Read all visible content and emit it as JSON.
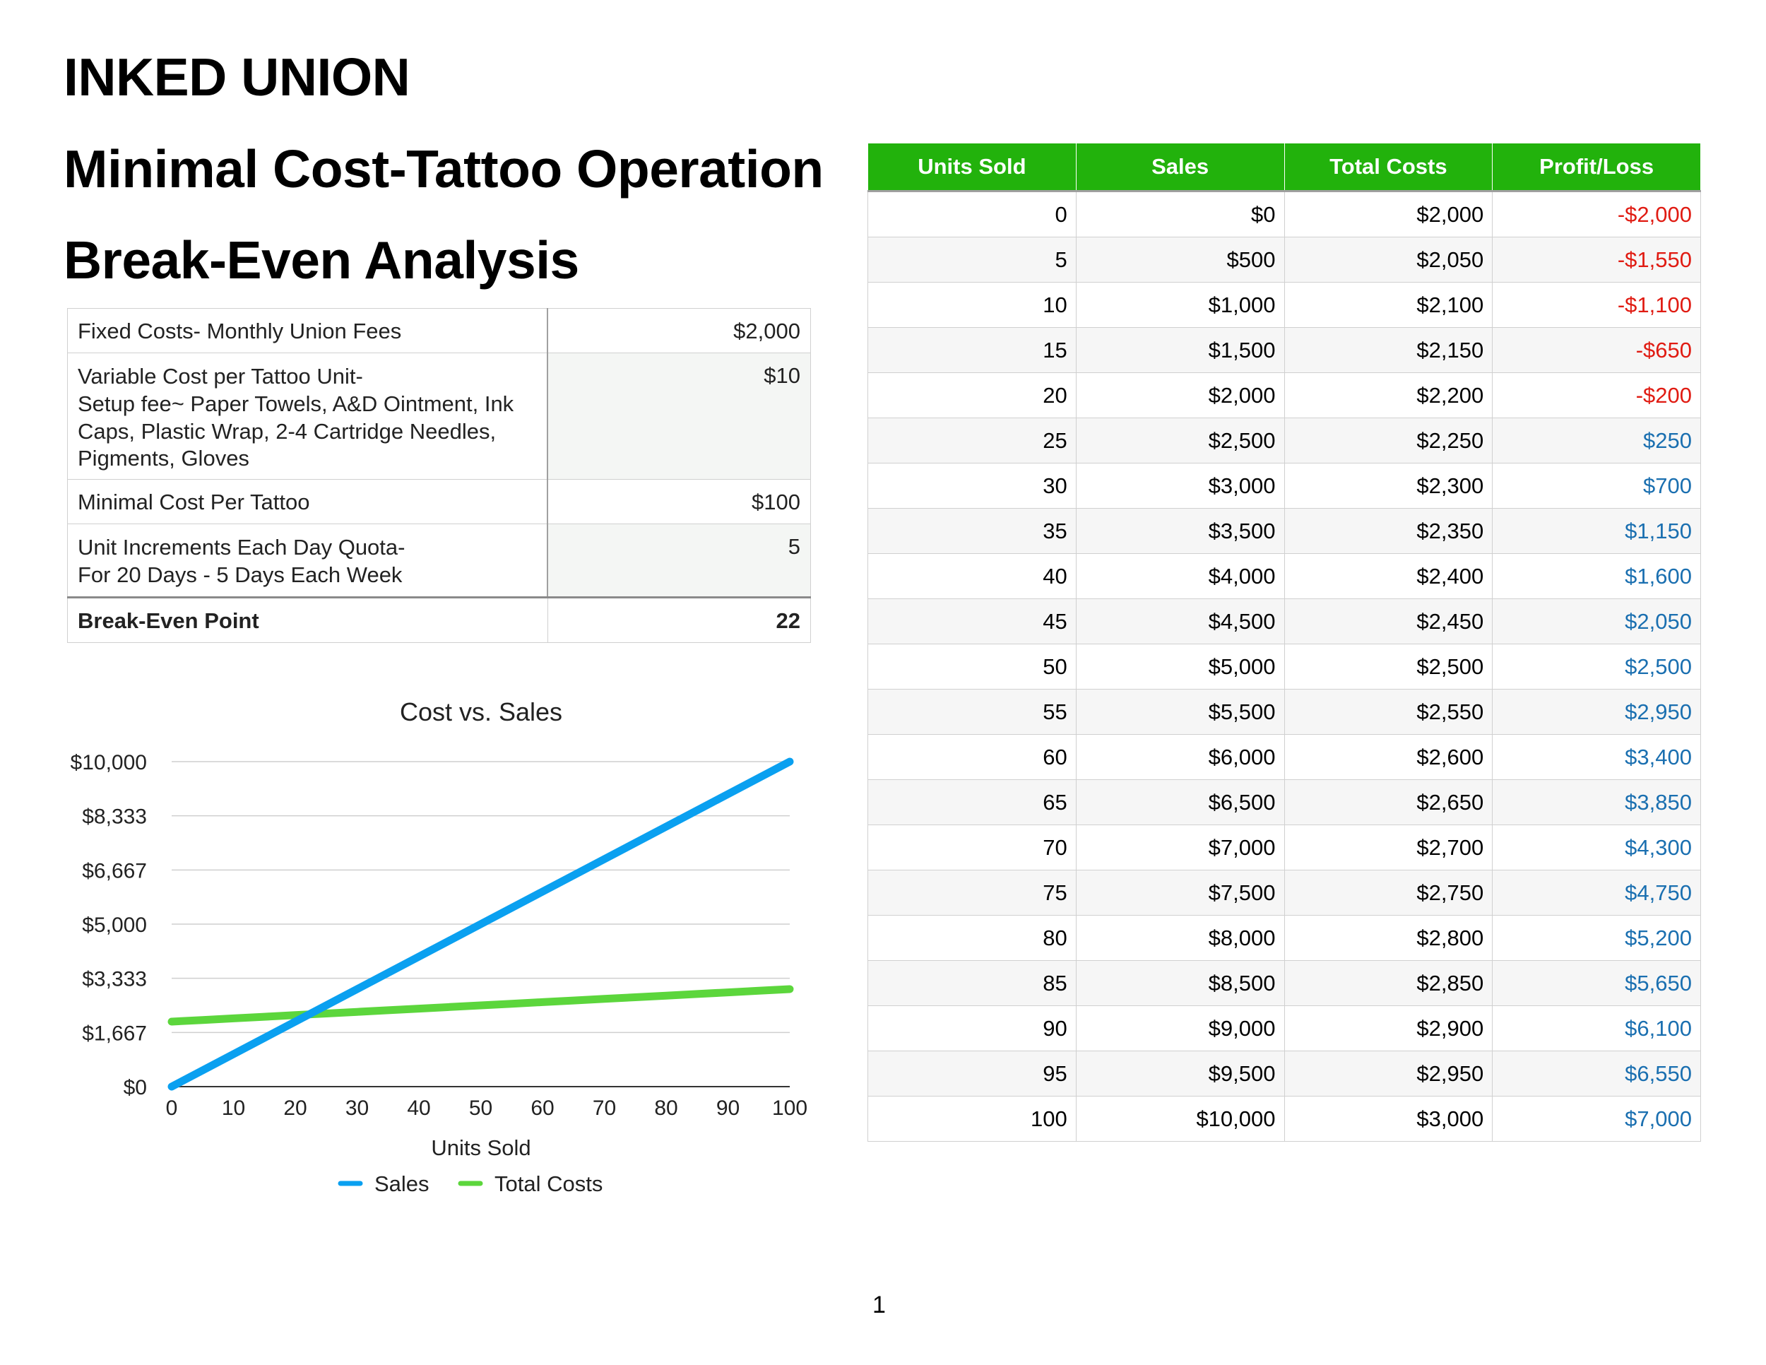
{
  "titles": {
    "company": "INKED UNION",
    "subtitle": "Minimal Cost-Tattoo Operation",
    "analysis": "Break-Even Analysis"
  },
  "summary": {
    "rows": [
      {
        "label": "Fixed Costs- Monthly Union Fees",
        "value": "$2,000"
      },
      {
        "label": "Variable Cost per Tattoo Unit-\nSetup fee~ Paper Towels, A&D Ointment, Ink Caps, Plastic Wrap, 2-4 Cartridge Needles, Pigments, Gloves",
        "value": "$10"
      },
      {
        "label": "Minimal Cost Per Tattoo",
        "value": "$100"
      },
      {
        "label": "Unit Increments Each Day Quota-\nFor 20 Days - 5 Days Each Week",
        "value": "5"
      }
    ],
    "breakeven": {
      "label": "Break-Even Point",
      "value": "22"
    }
  },
  "chart_data": {
    "type": "line",
    "title": "Cost vs. Sales",
    "xlabel": "Units Sold",
    "ylabel": "",
    "x": [
      0,
      5,
      10,
      15,
      20,
      25,
      30,
      35,
      40,
      45,
      50,
      55,
      60,
      65,
      70,
      75,
      80,
      85,
      90,
      95,
      100
    ],
    "series": [
      {
        "name": "Sales",
        "color": "#0aa0f0",
        "values": [
          0,
          500,
          1000,
          1500,
          2000,
          2500,
          3000,
          3500,
          4000,
          4500,
          5000,
          5500,
          6000,
          6500,
          7000,
          7500,
          8000,
          8500,
          9000,
          9500,
          10000
        ]
      },
      {
        "name": "Total Costs",
        "color": "#5cd63c",
        "values": [
          2000,
          2050,
          2100,
          2150,
          2200,
          2250,
          2300,
          2350,
          2400,
          2450,
          2500,
          2550,
          2600,
          2650,
          2700,
          2750,
          2800,
          2850,
          2900,
          2950,
          3000
        ]
      }
    ],
    "xticks": [
      0,
      10,
      20,
      30,
      40,
      50,
      60,
      70,
      80,
      90,
      100
    ],
    "yticks": [
      0,
      1667,
      3333,
      5000,
      6667,
      8333,
      10000
    ],
    "ytick_labels": [
      "$0",
      "$1,667",
      "$3,333",
      "$5,000",
      "$6,667",
      "$8,333",
      "$10,000"
    ],
    "xlim": [
      0,
      100
    ],
    "ylim": [
      0,
      10000
    ],
    "grid": true,
    "legend": "bottom"
  },
  "table": {
    "headers": [
      "Units Sold",
      "Sales",
      "Total Costs",
      "Profit/Loss"
    ],
    "rows": [
      [
        "0",
        "$0",
        "$2,000",
        "-$2,000"
      ],
      [
        "5",
        "$500",
        "$2,050",
        "-$1,550"
      ],
      [
        "10",
        "$1,000",
        "$2,100",
        "-$1,100"
      ],
      [
        "15",
        "$1,500",
        "$2,150",
        "-$650"
      ],
      [
        "20",
        "$2,000",
        "$2,200",
        "-$200"
      ],
      [
        "25",
        "$2,500",
        "$2,250",
        "$250"
      ],
      [
        "30",
        "$3,000",
        "$2,300",
        "$700"
      ],
      [
        "35",
        "$3,500",
        "$2,350",
        "$1,150"
      ],
      [
        "40",
        "$4,000",
        "$2,400",
        "$1,600"
      ],
      [
        "45",
        "$4,500",
        "$2,450",
        "$2,050"
      ],
      [
        "50",
        "$5,000",
        "$2,500",
        "$2,500"
      ],
      [
        "55",
        "$5,500",
        "$2,550",
        "$2,950"
      ],
      [
        "60",
        "$6,000",
        "$2,600",
        "$3,400"
      ],
      [
        "65",
        "$6,500",
        "$2,650",
        "$3,850"
      ],
      [
        "70",
        "$7,000",
        "$2,700",
        "$4,300"
      ],
      [
        "75",
        "$7,500",
        "$2,750",
        "$4,750"
      ],
      [
        "80",
        "$8,000",
        "$2,800",
        "$5,200"
      ],
      [
        "85",
        "$8,500",
        "$2,850",
        "$5,650"
      ],
      [
        "90",
        "$9,000",
        "$2,900",
        "$6,100"
      ],
      [
        "95",
        "$9,500",
        "$2,950",
        "$6,550"
      ],
      [
        "100",
        "$10,000",
        "$3,000",
        "$7,000"
      ]
    ]
  },
  "colors": {
    "header_bg": "#22b20c",
    "negative": "#e01b12",
    "positive": "#1a6fb0"
  },
  "page_number": "1"
}
